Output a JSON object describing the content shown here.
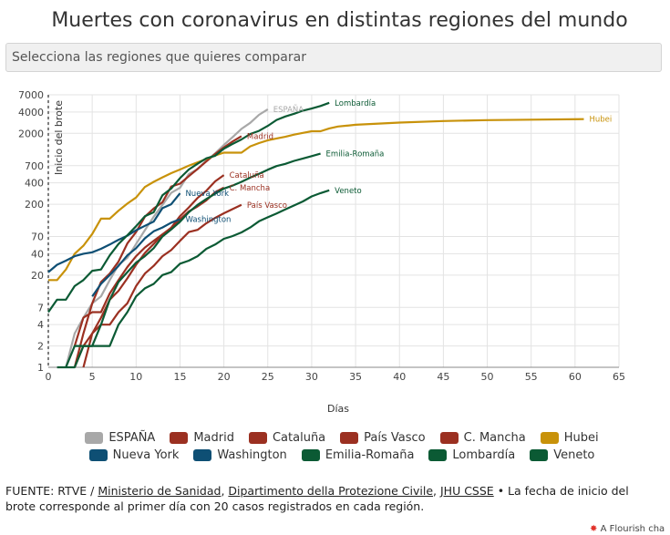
{
  "title": "Muertes con coronavirus en distintas regiones del mundo",
  "selector": {
    "placeholder": "Selecciona las regiones que quieres comparar"
  },
  "footer": {
    "source_prefix": "FUENTE: RTVE / ",
    "link_ministerio": "Ministerio de Sanidad",
    "sep1": ", ",
    "link_dpc": "Dipartimento della Protezione Civile",
    "sep2": ", ",
    "link_jhu": "JHU CSSE",
    "note": " • La fecha de inicio del brote corresponde al primer día con 20 casos registrados en cada región."
  },
  "flourish": {
    "star": "✸",
    "label": "A Flourish cha"
  },
  "chart_data": {
    "type": "line",
    "xlabel": "Días",
    "ylabel": "",
    "outbreak_label": "Inicio del brote",
    "xlim": [
      0,
      65
    ],
    "ylim": [
      1,
      7000
    ],
    "yscale": "log",
    "grid": true,
    "legend_position": "bottom",
    "x_ticks": [
      0,
      5,
      10,
      15,
      20,
      25,
      30,
      35,
      40,
      45,
      50,
      55,
      60,
      65
    ],
    "y_ticks": [
      1,
      2,
      4,
      7,
      20,
      40,
      70,
      200,
      400,
      700,
      2000,
      4000,
      7000
    ],
    "series": [
      {
        "name": "ESPAÑA",
        "label": "ESPAÑA",
        "color": "#a8a8a8",
        "x": [
          2,
          3,
          4,
          5,
          6,
          7,
          8,
          9,
          10,
          11,
          12,
          13,
          14,
          15,
          16,
          17,
          18,
          19,
          20,
          21,
          22,
          23,
          24,
          25
        ],
        "y": [
          1,
          3,
          5,
          8,
          10,
          17,
          28,
          35,
          55,
          86,
          133,
          196,
          289,
          342,
          533,
          623,
          830,
          1043,
          1375,
          1772,
          2311,
          2808,
          3647,
          4365
        ]
      },
      {
        "name": "Madrid",
        "label": "Madrid",
        "color": "#9b3021",
        "x": [
          3,
          4,
          5,
          6,
          7,
          8,
          9,
          10,
          11,
          12,
          13,
          14,
          15,
          16,
          17,
          18,
          19,
          20,
          21,
          22
        ],
        "y": [
          1,
          3,
          8,
          16,
          21,
          31,
          56,
          81,
          133,
          174,
          213,
          355,
          390,
          498,
          628,
          804,
          1021,
          1263,
          1535,
          1825
        ]
      },
      {
        "name": "Cataluña",
        "label": "Cataluña",
        "color": "#9b3021",
        "x": [
          3,
          4,
          5,
          6,
          7,
          8,
          9,
          10,
          11,
          12,
          13,
          14,
          15,
          16,
          17,
          18,
          19,
          20
        ],
        "y": [
          1,
          2,
          3,
          5,
          9,
          12,
          18,
          28,
          41,
          55,
          75,
          93,
          136,
          180,
          245,
          310,
          420,
          516
        ]
      },
      {
        "name": "País Vasco",
        "label": "País Vasco",
        "color": "#9b3021",
        "x": [
          4,
          5,
          6,
          7,
          8,
          9,
          10,
          11,
          12,
          13,
          14,
          15,
          16,
          17,
          18,
          19,
          20,
          21,
          22
        ],
        "y": [
          1,
          3,
          4,
          4,
          6,
          8,
          14,
          21,
          27,
          37,
          45,
          61,
          81,
          87,
          108,
          128,
          149,
          171,
          196
        ]
      },
      {
        "name": "C. Mancha",
        "label": "C. Mancha",
        "color": "#9b3021",
        "x": [
          3,
          4,
          5,
          6,
          7,
          8,
          9,
          10,
          11,
          12,
          13,
          14,
          15,
          16,
          17,
          18,
          19,
          20
        ],
        "y": [
          2,
          5,
          6,
          6,
          11,
          17,
          26,
          37,
          49,
          61,
          75,
          91,
          123,
          158,
          186,
          227,
          295,
          344
        ]
      },
      {
        "name": "Hubei",
        "label": "Hubei",
        "color": "#c8920a",
        "x": [
          0,
          1,
          2,
          3,
          4,
          5,
          6,
          7,
          8,
          9,
          10,
          11,
          12,
          13,
          14,
          15,
          16,
          17,
          18,
          19,
          20,
          21,
          22,
          23,
          24,
          25,
          26,
          27,
          28,
          29,
          30,
          31,
          32,
          33,
          34,
          35,
          40,
          45,
          50,
          55,
          61
        ],
        "y": [
          17,
          17,
          24,
          40,
          52,
          76,
          125,
          125,
          162,
          204,
          249,
          350,
          414,
          479,
          549,
          618,
          699,
          780,
          871,
          974,
          1068,
          1068,
          1068,
          1310,
          1457,
          1596,
          1696,
          1789,
          1921,
          2029,
          2144,
          2144,
          2346,
          2495,
          2563,
          2641,
          2835,
          2986,
          3075,
          3122,
          3177
        ]
      },
      {
        "name": "Nueva York",
        "label": "Nueva York",
        "color": "#0e4f74",
        "x": [
          0,
          1,
          2,
          3,
          4,
          5,
          6,
          7,
          8,
          9,
          10,
          11,
          12,
          13,
          14,
          15
        ],
        "y": [
          22,
          28,
          32,
          37,
          40,
          42,
          47,
          54,
          63,
          72,
          86,
          99,
          114,
          176,
          200,
          285
        ]
      },
      {
        "name": "Washington",
        "label": "Washington",
        "color": "#0e4f74",
        "x": [
          5,
          6,
          7,
          8,
          9,
          10,
          11,
          12,
          13,
          14,
          15
        ],
        "y": [
          10,
          15,
          20,
          27,
          38,
          48,
          66,
          83,
          94,
          110,
          123
        ]
      },
      {
        "name": "Emilia-Romaña",
        "label": "Emilia-Romaña",
        "color": "#0b5a34",
        "x": [
          1,
          2,
          3,
          4,
          5,
          6,
          7,
          8,
          9,
          10,
          11,
          12,
          13,
          14,
          15,
          16,
          17,
          18,
          19,
          20,
          21,
          22,
          23,
          24,
          25,
          26,
          27,
          28,
          29,
          30,
          31
        ],
        "y": [
          1,
          1,
          2,
          2,
          2,
          4,
          9,
          16,
          22,
          30,
          37,
          48,
          70,
          88,
          113,
          154,
          196,
          237,
          282,
          333,
          367,
          414,
          475,
          537,
          614,
          691,
          742,
          817,
          883,
          955,
          1033
        ]
      },
      {
        "name": "Lombardía",
        "label": "Lombardía",
        "color": "#0b5a34",
        "x": [
          0,
          1,
          2,
          3,
          4,
          5,
          6,
          7,
          8,
          9,
          10,
          11,
          12,
          13,
          14,
          15,
          16,
          17,
          18,
          19,
          20,
          21,
          22,
          23,
          24,
          25,
          26,
          27,
          28,
          29,
          30,
          31,
          32
        ],
        "y": [
          6,
          9,
          9,
          14,
          17,
          23,
          24,
          38,
          55,
          73,
          98,
          135,
          154,
          267,
          333,
          468,
          617,
          744,
          890,
          966,
          1218,
          1420,
          1640,
          1959,
          2168,
          2549,
          3095,
          3456,
          3776,
          4178,
          4474,
          4861,
          5402
        ]
      },
      {
        "name": "Veneto",
        "label": "Veneto",
        "color": "#0b5a34",
        "x": [
          2,
          3,
          4,
          5,
          6,
          7,
          8,
          9,
          10,
          11,
          12,
          13,
          14,
          15,
          16,
          17,
          18,
          19,
          20,
          21,
          22,
          23,
          24,
          25,
          26,
          27,
          28,
          29,
          30,
          31,
          32
        ],
        "y": [
          1,
          1,
          2,
          2,
          2,
          2,
          4,
          6,
          10,
          13,
          15,
          20,
          22,
          29,
          32,
          37,
          47,
          54,
          65,
          71,
          80,
          94,
          115,
          131,
          148,
          169,
          192,
          219,
          258,
          287,
          314
        ]
      }
    ]
  }
}
